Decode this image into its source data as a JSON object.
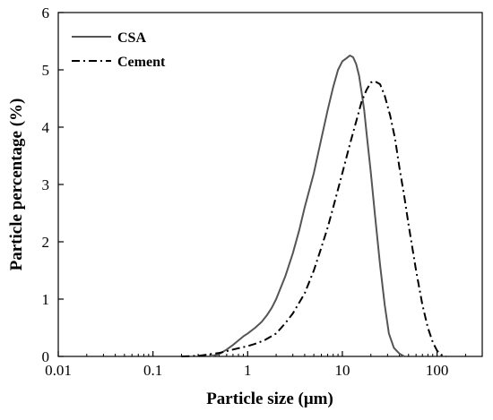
{
  "chart_data": {
    "type": "line",
    "xlabel": "Particle size (μm)",
    "ylabel": "Particle percentage (%)",
    "x_scale": "log",
    "xlim": [
      0.01,
      300
    ],
    "ylim": [
      0,
      6
    ],
    "x_ticks": [
      {
        "value": 0.01,
        "label": "0.01"
      },
      {
        "value": 0.1,
        "label": "0.1"
      },
      {
        "value": 1,
        "label": "1"
      },
      {
        "value": 10,
        "label": "10"
      },
      {
        "value": 100,
        "label": "100"
      }
    ],
    "y_ticks": [
      {
        "value": 0,
        "label": "0"
      },
      {
        "value": 1,
        "label": "1"
      },
      {
        "value": 2,
        "label": "2"
      },
      {
        "value": 3,
        "label": "3"
      },
      {
        "value": 4,
        "label": "4"
      },
      {
        "value": 5,
        "label": "5"
      },
      {
        "value": 6,
        "label": "6"
      }
    ],
    "grid": false,
    "legend_position": "top-left",
    "series": [
      {
        "name": "CSA",
        "color": "#555555",
        "line_style": "solid",
        "points": [
          [
            0.4,
            0.0
          ],
          [
            0.5,
            0.04
          ],
          [
            0.6,
            0.12
          ],
          [
            0.7,
            0.2
          ],
          [
            0.8,
            0.28
          ],
          [
            0.9,
            0.35
          ],
          [
            1.0,
            0.4
          ],
          [
            1.2,
            0.5
          ],
          [
            1.4,
            0.6
          ],
          [
            1.6,
            0.72
          ],
          [
            1.8,
            0.85
          ],
          [
            2.0,
            1.0
          ],
          [
            2.5,
            1.4
          ],
          [
            3.0,
            1.8
          ],
          [
            3.5,
            2.2
          ],
          [
            4.0,
            2.6
          ],
          [
            5.0,
            3.2
          ],
          [
            6.0,
            3.8
          ],
          [
            7.0,
            4.3
          ],
          [
            8.0,
            4.7
          ],
          [
            9.0,
            5.0
          ],
          [
            10.0,
            5.15
          ],
          [
            11.0,
            5.2
          ],
          [
            12.0,
            5.25
          ],
          [
            13.0,
            5.22
          ],
          [
            14.0,
            5.1
          ],
          [
            15.0,
            4.9
          ],
          [
            16.0,
            4.6
          ],
          [
            17.0,
            4.3
          ],
          [
            18.0,
            3.9
          ],
          [
            20.0,
            3.2
          ],
          [
            22.0,
            2.5
          ],
          [
            25.0,
            1.6
          ],
          [
            28.0,
            0.9
          ],
          [
            31.0,
            0.4
          ],
          [
            35.0,
            0.15
          ],
          [
            40.0,
            0.05
          ],
          [
            45.0,
            0.0
          ]
        ]
      },
      {
        "name": "Cement",
        "color": "#000000",
        "line_style": "dash-dot",
        "points": [
          [
            0.2,
            0.0
          ],
          [
            0.3,
            0.01
          ],
          [
            0.5,
            0.06
          ],
          [
            0.7,
            0.12
          ],
          [
            1.0,
            0.18
          ],
          [
            1.2,
            0.22
          ],
          [
            1.5,
            0.28
          ],
          [
            2.0,
            0.4
          ],
          [
            2.5,
            0.58
          ],
          [
            3.0,
            0.75
          ],
          [
            4.0,
            1.1
          ],
          [
            5.0,
            1.5
          ],
          [
            6.0,
            1.9
          ],
          [
            7.0,
            2.25
          ],
          [
            8.0,
            2.6
          ],
          [
            10.0,
            3.2
          ],
          [
            12.0,
            3.7
          ],
          [
            14.0,
            4.1
          ],
          [
            16.0,
            4.45
          ],
          [
            18.0,
            4.65
          ],
          [
            20.0,
            4.78
          ],
          [
            22.0,
            4.8
          ],
          [
            25.0,
            4.75
          ],
          [
            28.0,
            4.55
          ],
          [
            32.0,
            4.2
          ],
          [
            36.0,
            3.8
          ],
          [
            40.0,
            3.3
          ],
          [
            45.0,
            2.8
          ],
          [
            50.0,
            2.3
          ],
          [
            60.0,
            1.5
          ],
          [
            70.0,
            0.9
          ],
          [
            80.0,
            0.5
          ],
          [
            90.0,
            0.25
          ],
          [
            100.0,
            0.1
          ],
          [
            110.0,
            0.03
          ],
          [
            125.0,
            0.0
          ]
        ]
      }
    ]
  }
}
